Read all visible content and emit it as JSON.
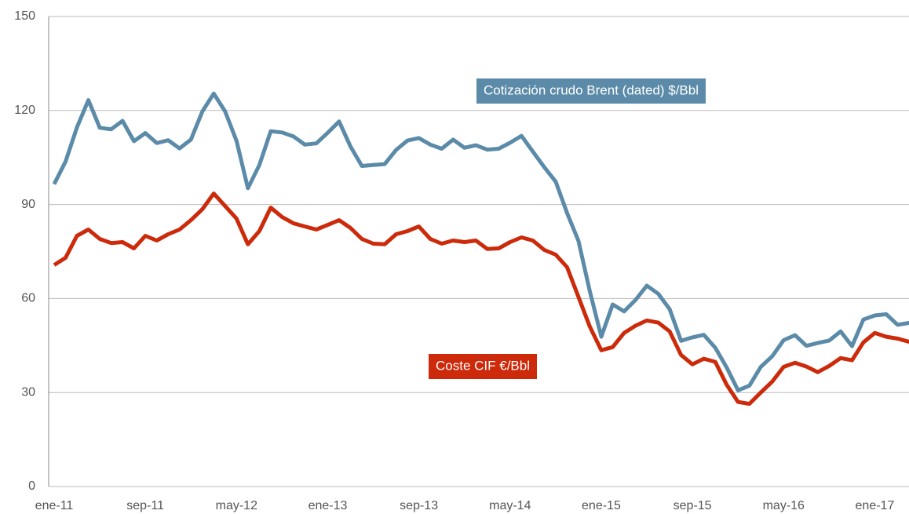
{
  "chart_data": {
    "type": "line",
    "categories": [
      "ene-11",
      null,
      null,
      null,
      null,
      null,
      null,
      null,
      "sep-11",
      null,
      null,
      null,
      null,
      null,
      null,
      null,
      "may-12",
      null,
      null,
      null,
      null,
      null,
      null,
      null,
      "ene-13",
      null,
      null,
      null,
      null,
      null,
      null,
      null,
      "sep-13",
      null,
      null,
      null,
      null,
      null,
      null,
      null,
      "may-14",
      null,
      null,
      null,
      null,
      null,
      null,
      null,
      "ene-15",
      null,
      null,
      null,
      null,
      null,
      null,
      null,
      "sep-15",
      null,
      null,
      null,
      null,
      null,
      null,
      null,
      "may-16",
      null,
      null,
      null,
      null,
      null,
      null,
      null,
      "ene-17",
      null,
      null,
      null,
      null
    ],
    "series": [
      {
        "name": "Cotización crudo Brent (dated) $/Bbl",
        "color": "#5b8ba8",
        "values": [
          96.5,
          103.7,
          114.6,
          123.3,
          114.5,
          114.0,
          116.7,
          110.2,
          112.8,
          109.6,
          110.5,
          107.9,
          110.7,
          119.7,
          125.4,
          119.7,
          110.3,
          95.2,
          102.6,
          113.4,
          113.0,
          111.7,
          109.1,
          109.5,
          112.9,
          116.5,
          108.5,
          102.3,
          102.6,
          102.9,
          107.4,
          110.4,
          111.2,
          109.1,
          107.8,
          110.7,
          108.1,
          108.9,
          107.5,
          107.8,
          109.7,
          111.9,
          106.9,
          101.9,
          97.3,
          87.3,
          78.4,
          62.3,
          47.8,
          58.1,
          55.9,
          59.5,
          64.1,
          61.5,
          56.6,
          46.5,
          47.6,
          48.4,
          44.3,
          38.0,
          30.7,
          32.2,
          38.2,
          41.6,
          46.7,
          48.3,
          44.9,
          45.8,
          46.6,
          49.5,
          44.8,
          53.3,
          54.6,
          55.0,
          51.6,
          52.2,
          50.7
        ]
      },
      {
        "name": "Coste CIF €/Bbl",
        "color": "#cc2a0a",
        "values": [
          70.7,
          73,
          80,
          82,
          79,
          77.7,
          78,
          76,
          80,
          78.5,
          80.5,
          82,
          85,
          88.5,
          93.5,
          89.5,
          85.5,
          77.3,
          81.5,
          89,
          86,
          84,
          83,
          82,
          83.5,
          85,
          82.5,
          79,
          77.5,
          77.3,
          80.5,
          81.5,
          83,
          79,
          77.5,
          78.5,
          78,
          78.5,
          75.8,
          76,
          78,
          79.5,
          78.5,
          75.5,
          74,
          70,
          60.5,
          51,
          43.5,
          44.5,
          49,
          51.3,
          53,
          52.3,
          49.5,
          42,
          39,
          40.8,
          39.8,
          32.5,
          27,
          26.4,
          30,
          33.5,
          38.2,
          39.5,
          38.3,
          36.5,
          38.5,
          41,
          40.3,
          46,
          49,
          47.8,
          47.2,
          46.2,
          44
        ]
      }
    ],
    "ylim": [
      0,
      150
    ],
    "yticks": [
      0,
      30,
      60,
      90,
      120,
      150
    ],
    "grid": true
  }
}
